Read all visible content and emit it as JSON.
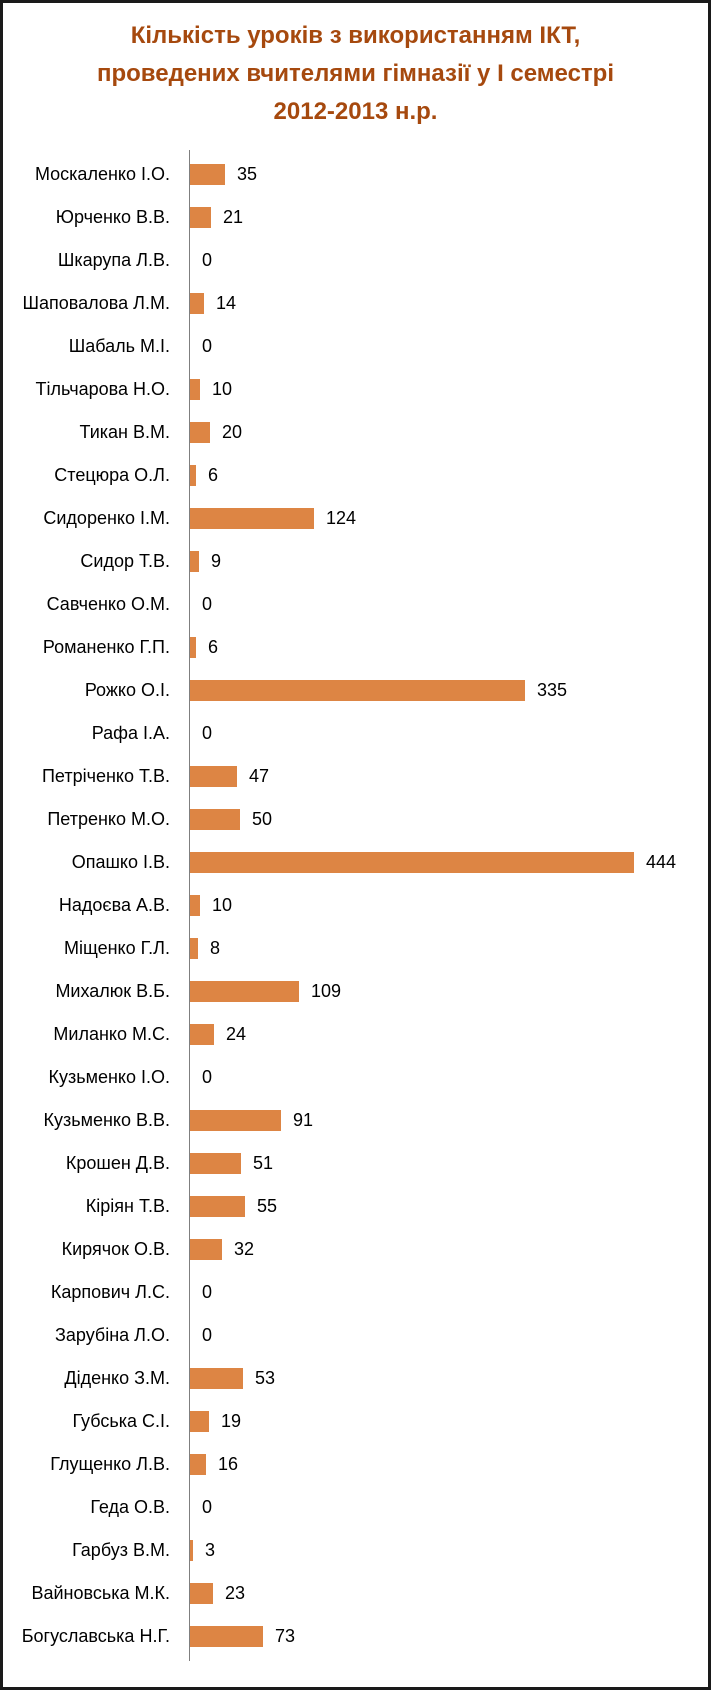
{
  "chart_data": {
    "type": "bar",
    "orientation": "horizontal",
    "title": "Кількість уроків з використанням ІКТ, проведених вчителями гімназії у І семестрі 2012-2013 н.р.",
    "title_lines": [
      "Кількість уроків з використанням ІКТ,",
      "проведених вчителями гімназії у І семестрі",
      "2012-2013 н.р."
    ],
    "categories": [
      "Москаленко І.О.",
      "Юрченко В.В.",
      "Шкарупа Л.В.",
      "Шаповалова Л.М.",
      "Шабаль М.І.",
      "Тільчарова Н.О.",
      "Тикан В.М.",
      "Стецюра О.Л.",
      "Сидоренко І.М.",
      "Сидор Т.В.",
      "Савченко О.М.",
      "Романенко Г.П.",
      "Рожко О.І.",
      "Рафа І.А.",
      "Петріченко Т.В.",
      "Петренко М.О.",
      "Опашко І.В.",
      "Надоєва А.В.",
      "Міщенко Г.Л.",
      "Михалюк В.Б.",
      "Миланко М.С.",
      "Кузьменко І.О.",
      "Кузьменко В.В.",
      "Крошен Д.В.",
      "Кіріян Т.В.",
      "Кирячок О.В.",
      "Карпович Л.С.",
      "Зарубіна Л.О.",
      "Діденко З.М.",
      "Губська С.І.",
      "Глущенко Л.В.",
      "Геда О.В.",
      "Гарбуз В.М.",
      "Вайновська М.К.",
      "Богуславська Н.Г."
    ],
    "values": [
      35,
      21,
      0,
      14,
      0,
      10,
      20,
      6,
      124,
      9,
      0,
      6,
      335,
      0,
      47,
      50,
      444,
      10,
      8,
      109,
      24,
      0,
      91,
      51,
      55,
      32,
      0,
      0,
      53,
      19,
      16,
      0,
      3,
      23,
      73
    ],
    "value_labels_position": "end-of-bar",
    "xlim": [
      0,
      450
    ],
    "grid": false,
    "legend": false,
    "colors": {
      "bar": "#DD8544",
      "title": "#A6490E",
      "label_text": "#000000",
      "axis": "#7F7F7F",
      "border": "#1A1A1A"
    }
  }
}
